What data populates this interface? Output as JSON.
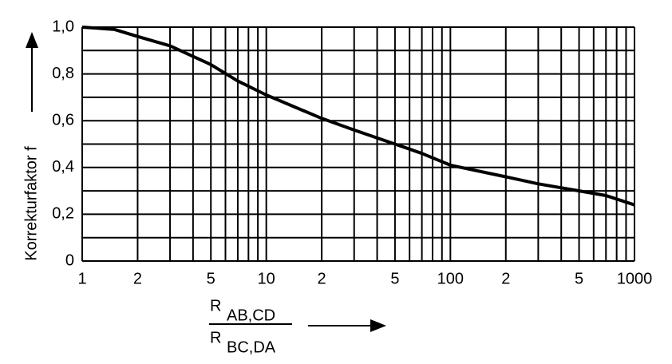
{
  "chart_data": {
    "type": "line",
    "log_x": true,
    "grid": true,
    "ylabel": "Korrekturfaktor f",
    "xlabel": {
      "numerator": "R",
      "numerator_sub": "AB,CD",
      "denominator": "R",
      "denominator_sub": "BC,DA"
    },
    "xlim": [
      1,
      1000
    ],
    "ylim": [
      0,
      1
    ],
    "xticks": [
      1,
      2,
      5,
      10,
      {
        "value": 20,
        "label": "2"
      },
      {
        "value": 50,
        "label": "5"
      },
      100,
      {
        "value": 200,
        "label": "2"
      },
      {
        "value": 500,
        "label": "5"
      },
      1000
    ],
    "xminor": [
      3,
      4,
      6,
      7,
      8,
      9,
      30,
      40,
      60,
      70,
      80,
      90,
      300,
      400,
      600,
      700,
      800,
      900
    ],
    "yticks": [
      0,
      {
        "value": 0.2,
        "label": "0,2"
      },
      {
        "value": 0.4,
        "label": "0,4"
      },
      {
        "value": 0.6,
        "label": "0,6"
      },
      {
        "value": 0.8,
        "label": "0,8"
      },
      {
        "value": 1,
        "label": "1,0"
      }
    ],
    "yminor": [
      0.1,
      0.3,
      0.5,
      0.7,
      0.9
    ],
    "series": [
      {
        "name": "f",
        "color": "#000000",
        "x": [
          1,
          1.5,
          2,
          3,
          5,
          7,
          10,
          20,
          30,
          50,
          70,
          100,
          200,
          300,
          500,
          700,
          1000
        ],
        "values": [
          1,
          0.99,
          0.96,
          0.92,
          0.84,
          0.77,
          0.71,
          0.61,
          0.56,
          0.5,
          0.46,
          0.41,
          0.36,
          0.33,
          0.3,
          0.28,
          0.24
        ]
      }
    ]
  }
}
